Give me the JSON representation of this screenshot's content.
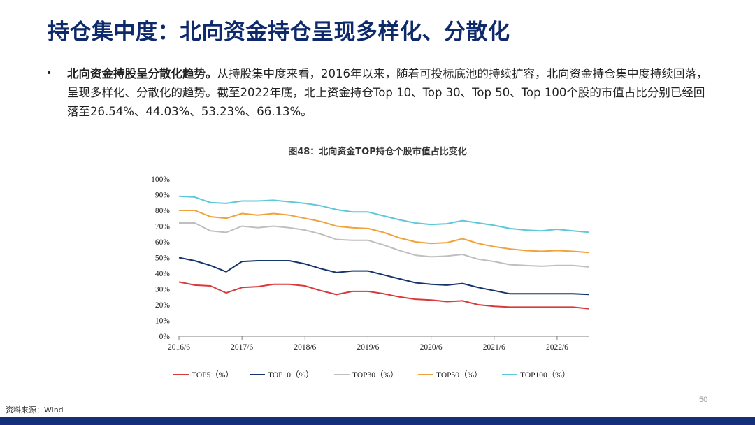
{
  "slide": {
    "title": "持仓集中度：北向资金持仓呈现多样化、分散化",
    "bullet_bold": "北向资金持股呈分散化趋势。",
    "bullet_text": "从持股集中度来看，2016年以来，随着可投标底池的持续扩容，北向资金持仓集中度持续回落，呈现多样化、分散化的趋势。截至2022年底，北上资金持仓Top 10、Top 30、Top 50、Top 100个股的市值占比分别已经回落至26.54%、44.03%、53.23%、66.13%。",
    "source": "资料来源：Wind",
    "page_number": "50"
  },
  "chart_data": {
    "type": "line",
    "title": "图48：北向资金TOP持仓个股市值占比变化",
    "x_tick_labels": [
      "2016/6",
      "2017/6",
      "2018/6",
      "2019/6",
      "2020/6",
      "2021/6",
      "2022/6"
    ],
    "x_start": "2016/6",
    "x_end": "2022/12",
    "y_tick_labels": [
      "0%",
      "10%",
      "20%",
      "30%",
      "40%",
      "50%",
      "60%",
      "70%",
      "80%",
      "90%",
      "100%"
    ],
    "ylim": [
      0,
      100
    ],
    "grid": false,
    "legend_position": "bottom",
    "x": [
      "2016/6",
      "2016/9",
      "2016/12",
      "2017/3",
      "2017/6",
      "2017/9",
      "2017/12",
      "2018/3",
      "2018/6",
      "2018/9",
      "2018/12",
      "2019/3",
      "2019/6",
      "2019/9",
      "2019/12",
      "2020/3",
      "2020/6",
      "2020/9",
      "2020/12",
      "2021/3",
      "2021/6",
      "2021/9",
      "2021/12",
      "2022/3",
      "2022/6",
      "2022/9",
      "2022/12"
    ],
    "series": [
      {
        "name": "TOP5（%）",
        "color": "#d9393a",
        "values": [
          34.5,
          32.5,
          32,
          27.5,
          31,
          31.5,
          33,
          33,
          32,
          29,
          26.5,
          28.5,
          28.5,
          27,
          25,
          23.5,
          23,
          22,
          22.5,
          20,
          19,
          18.5,
          18.5,
          18.5,
          18.5,
          18.5,
          17.5
        ]
      },
      {
        "name": "TOP10（%）",
        "color": "#15356b",
        "values": [
          50,
          48,
          45,
          41,
          47.5,
          48,
          48,
          48,
          46,
          43,
          40.5,
          41.5,
          41.5,
          39,
          36.5,
          34,
          33,
          32.5,
          33.5,
          31,
          29,
          27,
          27,
          27,
          27,
          27,
          26.54
        ]
      },
      {
        "name": "TOP30（%）",
        "color": "#bfbfbf",
        "values": [
          72,
          72,
          67,
          66,
          70,
          69,
          70,
          69,
          67.5,
          65,
          61.5,
          61,
          61,
          58,
          54.5,
          51.5,
          50.5,
          51,
          52,
          49,
          47.5,
          45.5,
          45,
          44.5,
          45,
          45,
          44.03
        ]
      },
      {
        "name": "TOP50（%）",
        "color": "#f0a23c",
        "values": [
          80,
          80,
          76,
          75,
          78,
          77,
          78,
          77,
          75,
          73,
          70,
          69,
          68.5,
          66,
          62.5,
          60,
          59,
          59.5,
          62,
          59,
          57,
          55.5,
          54.5,
          54,
          54.5,
          54,
          53.23
        ]
      },
      {
        "name": "TOP100（%）",
        "color": "#5ec8d8",
        "values": [
          89,
          88.5,
          85,
          84.5,
          86,
          86,
          86.5,
          85.5,
          84.5,
          83,
          80.5,
          79,
          79,
          76.5,
          74,
          72,
          71,
          71.5,
          73.5,
          72,
          70.5,
          68.5,
          67.5,
          67,
          68,
          67,
          66.13
        ]
      }
    ]
  }
}
